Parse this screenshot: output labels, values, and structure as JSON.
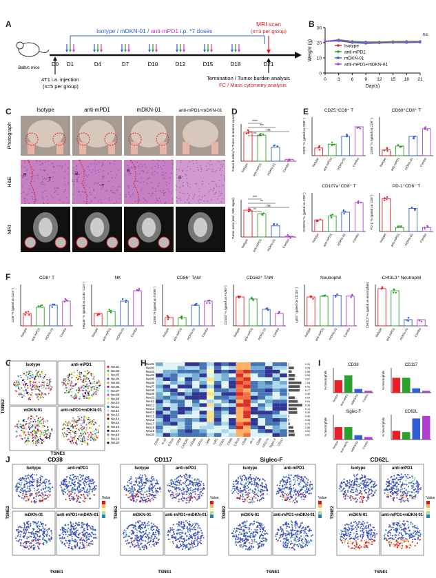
{
  "panel_letters": [
    "A",
    "B",
    "C",
    "D",
    "E",
    "F",
    "G",
    "H",
    "I",
    "J"
  ],
  "colors": {
    "isotype": "#e8202a",
    "antimpd1": "#2aa12c",
    "mdkn": "#2f5fd3",
    "combo": "#b040d0",
    "arrow_iso": "#2f5fd3",
    "arrow_mdkn": "#2aa12c",
    "arrow_pd1": "#d82cc4",
    "red": "#e01a1a"
  },
  "panelA": {
    "mouse_label": "Balb/c mice",
    "treatment_text_1": "Isotype",
    "treatment_text_2": " / mDKN-01 / ",
    "treatment_text_3": "anti-mPD1",
    "treatment_text_4": " i.p. *7 doses",
    "mri_line1": "MRI scan",
    "mri_line2": "(n=3 per group)",
    "days": [
      "D0",
      "D1",
      "D4",
      "D7",
      "D10",
      "D12",
      "D15",
      "D18",
      "D21"
    ],
    "injection_line1": "4T1 i.a. injection",
    "injection_line2": "(n=5 per group)",
    "termination": "Termination / Tumor burden analysis",
    "fc": "FC / Mass cytometry analysis"
  },
  "panelB": {
    "ylabel": "Weight (g)",
    "xlabel": "Day(s)",
    "xticks": [
      "0",
      "3",
      "6",
      "9",
      "12",
      "15",
      "18",
      "21"
    ],
    "yticks": [
      "0",
      "10",
      "20",
      "30"
    ],
    "ns": "ns",
    "legend": [
      "Isotype",
      "anti-mPD1",
      "mDKN-01",
      "anti-mPD1+mDKN-01"
    ]
  },
  "panelC": {
    "headers": [
      "Isotype",
      "anti-mPD1",
      "mDKN-01",
      "anti-mPD1+mDKN-01"
    ],
    "rows": [
      "Photograph",
      "H&E",
      "MRI"
    ],
    "he_labels": [
      "B",
      "T",
      "B",
      "T",
      "B",
      "B"
    ]
  },
  "panelD": {
    "top_ylabel": "Tumor burden (% Tumor in marrow space)",
    "top_sig": [
      "****",
      "***",
      "ns",
      "**"
    ],
    "bottom_ylabel": "Tumor area (mm², MRI signal)",
    "bottom_sig": [
      "***",
      "**",
      "ns",
      "**"
    ],
    "groups": [
      "Isotype",
      "anti-mPD1",
      "mDKN-01",
      "Combo"
    ]
  },
  "panelE": {
    "titles": [
      "CD25⁺CD8⁺ T",
      "CD69⁺CD8⁺ T",
      "CD107a⁺CD8⁺ T",
      "PD-1⁺CD8⁺ T"
    ],
    "ylabels": [
      "CD25⁺% (gated on CD8⁺)",
      "CD69⁺% (gated on CD8⁺)",
      "CD107a⁺% (gated on CD8⁺)",
      "PD-1⁺% (gated on CD8⁺)"
    ]
  },
  "panelF": {
    "titles": [
      "CD8⁺ T",
      "NK",
      "CD86⁺ TAM",
      "CD163⁺ TAM",
      "Neutrophil",
      "CHI3L3⁺ Neutrophil"
    ],
    "ylabels": [
      "CD8⁺% (gated on CD3⁺)",
      "NKp46⁺% (gated on CD45⁺CD3⁻)",
      "CD86⁺% (gated on F4/80⁺)",
      "CD163⁺% (gated on F4/80⁺)",
      "Ly6G⁺ (gated on CD11b⁺)",
      "CHI3L3⁺% (gated on neutrophils)"
    ]
  },
  "panelG": {
    "titles": [
      "Isotype",
      "anti-mPD1",
      "mDKN-01",
      "anti-mPD1+mDKN-01"
    ],
    "xaxis": "TSNE1",
    "yaxis": "TSNE2",
    "clusters": [
      "Neu01",
      "Neu02",
      "Neu03",
      "Neu04",
      "Neu05",
      "Neu06",
      "Neu07",
      "Neu08",
      "Neu09",
      "Neu10",
      "Neu11",
      "Neu12",
      "Neu13",
      "Neu14",
      "Neu15",
      "Neu16",
      "Neu17",
      "Neu18",
      "Neu19",
      "Neu20"
    ]
  },
  "panelH": {
    "rows": [
      "Neu01",
      "Neu02",
      "Neu03",
      "Neu04",
      "Neu05",
      "Neu06",
      "Neu07",
      "Neu08",
      "Neu09",
      "Neu10",
      "Neu11",
      "Neu12",
      "Neu13",
      "Neu14",
      "Neu15",
      "Neu16",
      "Neu17",
      "Neu18",
      "Neu19",
      "Neu20"
    ],
    "cols": [
      "CD45",
      "Ki-67",
      "CD11b",
      "CD68",
      "CX3CR1",
      "CD206",
      "CD11c",
      "Ly6G",
      "Ly6C",
      "CD62L",
      "CD86",
      "CD115",
      "CD38",
      "Gr-1",
      "CD69",
      "CD117a",
      "Siglec-F",
      "CD117"
    ],
    "pct": [
      "0.31",
      "3.29",
      "1.96",
      "3.95",
      "3.67",
      "7.81",
      "6.92",
      "6.77",
      "0.45",
      "3.91",
      "5.61",
      "8.38",
      "5.14",
      "5.30",
      "0.45",
      "0.48",
      "0.76",
      "2.88",
      "3.51",
      "3.81"
    ]
  },
  "panelI": {
    "ylabel": "% Neutrophils",
    "groups": [
      "Isotype",
      "anti-mPD1",
      "mDKN-01",
      "Combo"
    ],
    "charts": [
      {
        "title": "CD38",
        "values": [
          20,
          28,
          6,
          3
        ]
      },
      {
        "title": "CD117",
        "values": [
          24,
          24,
          7,
          3
        ]
      },
      {
        "title": "Siglec-F",
        "values": [
          20,
          20,
          7,
          4
        ]
      },
      {
        "title": "CD62L",
        "values": [
          14,
          12,
          34,
          38
        ]
      }
    ]
  },
  "panelJ": {
    "markers": [
      "CD38",
      "CD117",
      "Siglec-F",
      "CD62L"
    ],
    "titles": [
      "Isotype",
      "anti-mPD1",
      "mDKN-01",
      "anti-mPD1+mDKN-01"
    ],
    "xaxis": "TSNE1",
    "yaxis": "TSNE2",
    "legend": "Value"
  }
}
